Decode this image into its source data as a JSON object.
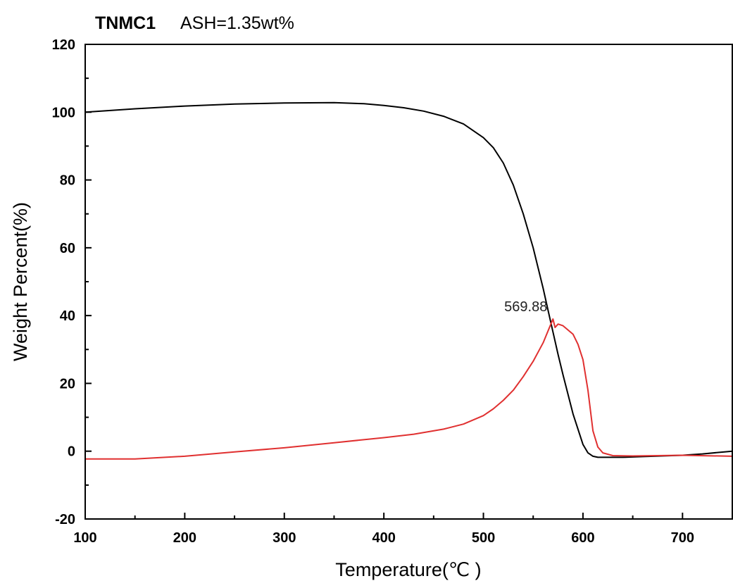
{
  "chart_data": {
    "type": "line",
    "title": "TNMC1",
    "subtitle": "ASH=1.35wt%",
    "xlabel": "Temperature(℃ )",
    "ylabel": "Weight Percent(%)",
    "xlim": [
      100,
      750
    ],
    "ylim": [
      -20,
      120
    ],
    "x_ticks": [
      100,
      200,
      300,
      400,
      500,
      600,
      700
    ],
    "y_ticks": [
      -20,
      0,
      20,
      40,
      60,
      80,
      100,
      120
    ],
    "grid": false,
    "series": [
      {
        "color": "#000000",
        "x": [
          100,
          120,
          150,
          200,
          250,
          300,
          350,
          380,
          400,
          420,
          440,
          460,
          480,
          500,
          510,
          520,
          530,
          540,
          550,
          555,
          560,
          565,
          570,
          575,
          580,
          590,
          600,
          605,
          610,
          615,
          620,
          640,
          660,
          700,
          720,
          750
        ],
        "y": [
          100,
          100.4,
          101,
          101.8,
          102.4,
          102.7,
          102.8,
          102.5,
          102,
          101.3,
          100.3,
          98.8,
          96.5,
          92.5,
          89.5,
          85,
          78.5,
          70,
          60,
          54,
          48,
          41.5,
          35,
          28.5,
          22.5,
          11,
          2,
          -0.5,
          -1.5,
          -1.8,
          -1.8,
          -1.8,
          -1.6,
          -1.2,
          -0.8,
          0
        ]
      },
      {
        "color": "#e03030",
        "x": [
          100,
          150,
          200,
          250,
          300,
          350,
          400,
          430,
          460,
          480,
          500,
          510,
          520,
          530,
          540,
          550,
          560,
          565,
          569.88,
          572,
          575,
          580,
          590,
          595,
          600,
          605,
          610,
          615,
          620,
          630,
          650,
          700,
          750
        ],
        "y": [
          -2.3,
          -2.3,
          -1.5,
          -0.2,
          1,
          2.5,
          4,
          5,
          6.5,
          8,
          10.5,
          12.5,
          15,
          18,
          22,
          26.5,
          32,
          35.5,
          39,
          36.5,
          37.5,
          37,
          34.5,
          31.5,
          27,
          18,
          6,
          1.2,
          -0.5,
          -1.3,
          -1.4,
          -1.2,
          -1.5
        ]
      }
    ],
    "annotations": [
      {
        "text": "569.88",
        "x": 569.88,
        "y": 39
      }
    ]
  }
}
